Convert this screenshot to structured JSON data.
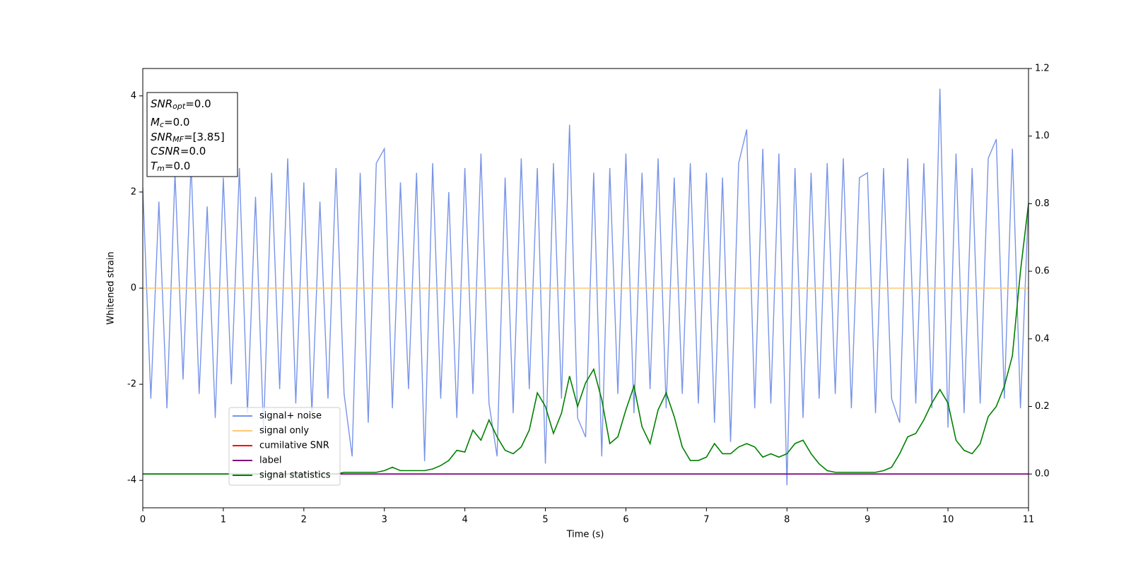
{
  "chart_data": {
    "type": "line",
    "xlabel": "Time (s)",
    "ylabel": "Whitened strain",
    "xlim": [
      0,
      11
    ],
    "xticks": [
      0,
      1,
      2,
      3,
      4,
      5,
      6,
      7,
      8,
      9,
      10,
      11
    ],
    "ylim": [
      -4.57,
      4.57
    ],
    "yticks": [
      -4,
      -2,
      0,
      2,
      4
    ],
    "y2lim": [
      -0.1,
      1.2
    ],
    "y2ticks": [
      {
        "value": 0,
        "label": "0.0"
      },
      0.2,
      0.4,
      0.6,
      0.8,
      {
        "value": 1,
        "label": "1.0"
      },
      1.2
    ],
    "annotation": [
      {
        "main": "SNR",
        "sub": "opt",
        "rest": "=0.0"
      },
      {
        "main": "M",
        "sub": "c",
        "rest": "=0.0"
      },
      {
        "main": "SNR",
        "sub": "MF",
        "rest": "=[3.85]"
      },
      {
        "main": "CSNR",
        "rest": "=0.0"
      },
      {
        "main": "T",
        "sub": "m",
        "rest": "=0.0"
      }
    ],
    "x": [
      0,
      0.1,
      0.2,
      0.3,
      0.4,
      0.5,
      0.6,
      0.7,
      0.8,
      0.9,
      1,
      1.1,
      1.2,
      1.3,
      1.4,
      1.5,
      1.6,
      1.7,
      1.8,
      1.9,
      2,
      2.1,
      2.2,
      2.3,
      2.4,
      2.5,
      2.6,
      2.7,
      2.8,
      2.9,
      3,
      3.1,
      3.2,
      3.3,
      3.4,
      3.5,
      3.6,
      3.7,
      3.8,
      3.9,
      4,
      4.1,
      4.2,
      4.3,
      4.4,
      4.5,
      4.6,
      4.7,
      4.8,
      4.9,
      5,
      5.1,
      5.2,
      5.3,
      5.4,
      5.5,
      5.6,
      5.7,
      5.8,
      5.9,
      6,
      6.1,
      6.2,
      6.3,
      6.4,
      6.5,
      6.6,
      6.7,
      6.8,
      6.9,
      7,
      7.1,
      7.2,
      7.3,
      7.4,
      7.5,
      7.6,
      7.7,
      7.8,
      7.9,
      8,
      8.1,
      8.2,
      8.3,
      8.4,
      8.5,
      8.6,
      8.7,
      8.8,
      8.9,
      9,
      9.1,
      9.2,
      9.3,
      9.4,
      9.5,
      9.6,
      9.7,
      9.8,
      9.9,
      10,
      10.1,
      10.2,
      10.3,
      10.4,
      10.5,
      10.6,
      10.7,
      10.8,
      10.9,
      11
    ],
    "series": [
      {
        "name": "signal+ noise",
        "color": "#7994e8",
        "values": [
          2.1,
          -2.3,
          1.8,
          -2.5,
          2.4,
          -1.9,
          2.6,
          -2.2,
          1.7,
          -2.7,
          2.3,
          -2.0,
          2.5,
          -2.6,
          1.9,
          -3.0,
          2.4,
          -2.1,
          2.7,
          -2.4,
          2.2,
          -2.6,
          1.8,
          -2.3,
          2.5,
          -2.2,
          -3.5,
          2.4,
          -2.8,
          2.6,
          2.9,
          -2.5,
          2.2,
          -2.1,
          2.4,
          -3.6,
          2.6,
          -2.3,
          2.0,
          -2.7,
          2.5,
          -2.2,
          2.8,
          -2.4,
          -3.5,
          2.3,
          -2.6,
          2.7,
          -2.1,
          2.5,
          -3.65,
          2.6,
          -2.3,
          3.4,
          -2.7,
          -3.1,
          2.4,
          -3.5,
          2.5,
          -2.2,
          2.8,
          -2.6,
          2.4,
          -2.1,
          2.7,
          -2.5,
          2.3,
          -2.2,
          2.6,
          -2.4,
          2.4,
          -2.8,
          2.3,
          -3.2,
          2.6,
          3.3,
          -2.5,
          2.9,
          -2.4,
          2.8,
          -4.1,
          2.5,
          -2.7,
          2.4,
          -2.3,
          2.6,
          -2.2,
          2.7,
          -2.5,
          2.3,
          2.4,
          -2.6,
          2.5,
          -2.3,
          -2.8,
          2.7,
          -2.4,
          2.6,
          -2.5,
          4.15,
          -2.9,
          2.8,
          -2.6,
          2.5,
          -2.4,
          2.7,
          3.1,
          -2.3,
          2.9,
          -2.5,
          1.8
        ]
      },
      {
        "name": "signal only",
        "color": "#ffc870",
        "values": [
          0,
          0,
          0,
          0,
          0,
          0,
          0,
          0,
          0,
          0,
          0,
          0,
          0,
          0,
          0,
          0,
          0,
          0,
          0,
          0,
          0,
          0,
          0,
          0,
          0,
          0,
          0,
          0,
          0,
          0,
          0,
          0,
          0,
          0,
          0,
          0,
          0,
          0,
          0,
          0,
          0,
          0,
          0,
          0,
          0,
          0,
          0,
          0,
          0,
          0,
          0,
          0,
          0,
          0,
          0,
          0,
          0,
          0,
          0,
          0,
          0,
          0,
          0,
          0,
          0,
          0,
          0,
          0,
          0,
          0,
          0,
          0,
          0,
          0,
          0,
          0,
          0,
          0,
          0,
          0,
          0,
          0,
          0,
          0,
          0,
          0,
          0,
          0,
          0,
          0,
          0,
          0,
          0,
          0,
          0,
          0,
          0,
          0,
          0,
          0,
          0,
          0,
          0,
          0,
          0,
          0,
          0,
          0,
          0,
          0,
          0
        ]
      },
      {
        "name": "cumilative SNR",
        "color": "#ff0000",
        "axis": "y2",
        "values": [
          0,
          0,
          0,
          0,
          0,
          0,
          0,
          0,
          0,
          0,
          0,
          0,
          0,
          0,
          0,
          0,
          0,
          0,
          0,
          0,
          0,
          0,
          0,
          0,
          0,
          0,
          0,
          0,
          0,
          0,
          0,
          0,
          0,
          0,
          0,
          0,
          0,
          0,
          0,
          0,
          0,
          0,
          0,
          0,
          0,
          0,
          0,
          0,
          0,
          0,
          0,
          0,
          0,
          0,
          0,
          0,
          0,
          0,
          0,
          0,
          0,
          0,
          0,
          0,
          0,
          0,
          0,
          0,
          0,
          0,
          0,
          0,
          0,
          0,
          0,
          0,
          0,
          0,
          0,
          0,
          0,
          0,
          0,
          0,
          0,
          0,
          0,
          0,
          0,
          0,
          0,
          0,
          0,
          0,
          0,
          0,
          0,
          0,
          0,
          0,
          0,
          0,
          0,
          0,
          0,
          0,
          0,
          0,
          0,
          0,
          0
        ]
      },
      {
        "name": "label",
        "color": "#800080",
        "axis": "y2",
        "values": [
          0,
          0,
          0,
          0,
          0,
          0,
          0,
          0,
          0,
          0,
          0,
          0,
          0,
          0,
          0,
          0,
          0,
          0,
          0,
          0,
          0,
          0,
          0,
          0,
          0,
          0,
          0,
          0,
          0,
          0,
          0,
          0,
          0,
          0,
          0,
          0,
          0,
          0,
          0,
          0,
          0,
          0,
          0,
          0,
          0,
          0,
          0,
          0,
          0,
          0,
          0,
          0,
          0,
          0,
          0,
          0,
          0,
          0,
          0,
          0,
          0,
          0,
          0,
          0,
          0,
          0,
          0,
          0,
          0,
          0,
          0,
          0,
          0,
          0,
          0,
          0,
          0,
          0,
          0,
          0,
          0,
          0,
          0,
          0,
          0,
          0,
          0,
          0,
          0,
          0,
          0,
          0,
          0,
          0,
          0,
          0,
          0,
          0,
          0,
          0,
          0,
          0,
          0,
          0,
          0,
          0,
          0,
          0,
          0,
          0,
          0
        ]
      },
      {
        "name": "signal statistics",
        "color": "#008000",
        "axis": "y2",
        "values": [
          0,
          0,
          0,
          0,
          0,
          0,
          0,
          0,
          0,
          0,
          0,
          0,
          0,
          0,
          0,
          0,
          0,
          0,
          0,
          0,
          0,
          0,
          0,
          0,
          0,
          0.005,
          0.005,
          0.005,
          0.005,
          0.005,
          0.01,
          0.02,
          0.01,
          0.01,
          0.01,
          0.01,
          0.015,
          0.025,
          0.04,
          0.07,
          0.065,
          0.13,
          0.1,
          0.16,
          0.11,
          0.07,
          0.06,
          0.08,
          0.13,
          0.24,
          0.2,
          0.12,
          0.18,
          0.29,
          0.2,
          0.27,
          0.31,
          0.22,
          0.09,
          0.11,
          0.19,
          0.26,
          0.14,
          0.09,
          0.19,
          0.24,
          0.17,
          0.08,
          0.04,
          0.04,
          0.05,
          0.09,
          0.06,
          0.06,
          0.08,
          0.09,
          0.08,
          0.05,
          0.06,
          0.05,
          0.06,
          0.09,
          0.1,
          0.06,
          0.03,
          0.01,
          0.005,
          0.005,
          0.005,
          0.005,
          0.005,
          0.005,
          0.01,
          0.02,
          0.06,
          0.11,
          0.12,
          0.16,
          0.21,
          0.25,
          0.21,
          0.1,
          0.07,
          0.06,
          0.09,
          0.17,
          0.2,
          0.26,
          0.35,
          0.6,
          0.8
        ]
      }
    ]
  }
}
